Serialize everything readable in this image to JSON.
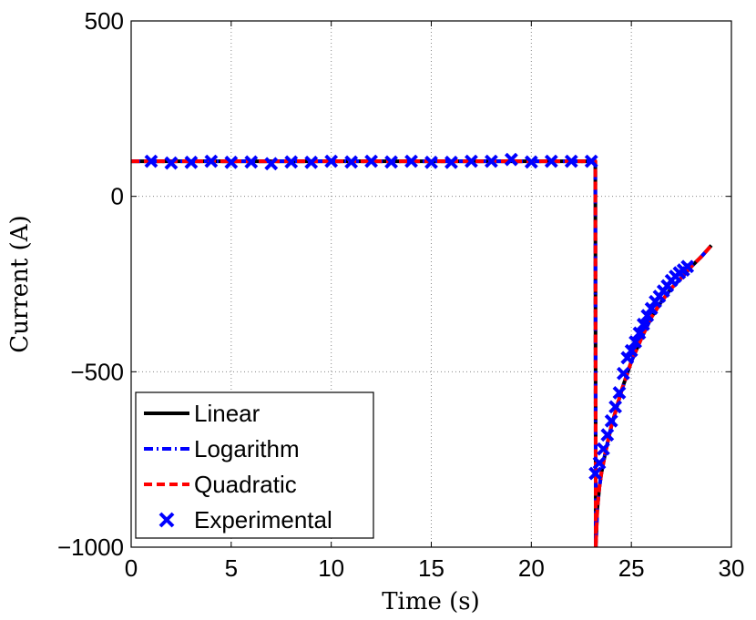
{
  "chart_data": {
    "type": "line",
    "title": "",
    "xlabel": "Time (s)",
    "ylabel": "Current (A)",
    "xlim": [
      0,
      30
    ],
    "ylim": [
      -1000,
      500
    ],
    "xticks": [
      0,
      5,
      10,
      15,
      20,
      25,
      30
    ],
    "yticks": [
      -1000,
      -500,
      0,
      500
    ],
    "xtick_labels": [
      "0",
      "5",
      "10",
      "15",
      "20",
      "25",
      "30"
    ],
    "ytick_labels": [
      "−1000",
      "−500",
      "0",
      "500"
    ],
    "grid": true,
    "legend_position": "bottom-left",
    "series": [
      {
        "name": "Linear",
        "style": "solid",
        "color": "#000000",
        "x": [
          0,
          23.2,
          23.22,
          23.25,
          23.3,
          23.4,
          23.5,
          23.7,
          24.0,
          24.5,
          25.0,
          25.5,
          26.0,
          26.5,
          27.0,
          27.5,
          28.0,
          28.5,
          29.0
        ],
        "y": [
          100,
          100,
          -1000,
          -960,
          -890,
          -830,
          -790,
          -730,
          -655,
          -555,
          -470,
          -405,
          -345,
          -300,
          -262,
          -232,
          -200,
          -172,
          -140
        ]
      },
      {
        "name": "Logarithm",
        "style": "dashdot",
        "color": "#0000ff",
        "x": [
          0,
          23.2,
          23.22,
          23.25,
          23.3,
          23.4,
          23.5,
          23.7,
          24.0,
          24.5,
          25.0,
          25.5,
          26.0,
          26.5,
          27.0,
          27.5,
          28.0,
          28.5,
          29.0
        ],
        "y": [
          100,
          100,
          -1000,
          -960,
          -890,
          -830,
          -790,
          -730,
          -655,
          -555,
          -470,
          -405,
          -345,
          -300,
          -262,
          -232,
          -200,
          -172,
          -140
        ]
      },
      {
        "name": "Quadratic",
        "style": "dashed",
        "color": "#ff0000",
        "x": [
          0,
          23.2,
          23.22,
          23.25,
          23.3,
          23.4,
          23.5,
          23.7,
          24.0,
          24.5,
          25.0,
          25.5,
          26.0,
          26.5,
          27.0,
          27.5,
          28.0,
          28.5,
          29.0
        ],
        "y": [
          100,
          100,
          -1000,
          -960,
          -890,
          -830,
          -790,
          -730,
          -655,
          -555,
          -470,
          -405,
          -345,
          -300,
          -262,
          -232,
          -200,
          -172,
          -140
        ]
      },
      {
        "name": "Experimental",
        "style": "markers",
        "color": "#0000ff",
        "x": [
          1,
          2,
          3,
          4,
          5,
          6,
          7,
          8,
          9,
          10,
          11,
          12,
          13,
          14,
          15,
          16,
          17,
          18,
          19,
          20,
          21,
          22,
          23,
          23.2,
          23.4,
          23.6,
          23.8,
          24.0,
          24.2,
          24.4,
          24.6,
          24.8,
          25.0,
          25.2,
          25.4,
          25.6,
          25.8,
          26.0,
          26.2,
          26.4,
          26.6,
          26.8,
          27.0,
          27.2,
          27.4,
          27.6,
          27.8
        ],
        "y": [
          100,
          95,
          97,
          100,
          97,
          98,
          93,
          98,
          97,
          100,
          98,
          100,
          98,
          100,
          97,
          97,
          100,
          100,
          105,
          98,
          100,
          100,
          100,
          -790,
          -760,
          -720,
          -680,
          -640,
          -600,
          -560,
          -505,
          -460,
          -440,
          -415,
          -390,
          -365,
          -340,
          -320,
          -300,
          -285,
          -270,
          -255,
          -240,
          -228,
          -218,
          -210,
          -200
        ]
      }
    ]
  }
}
